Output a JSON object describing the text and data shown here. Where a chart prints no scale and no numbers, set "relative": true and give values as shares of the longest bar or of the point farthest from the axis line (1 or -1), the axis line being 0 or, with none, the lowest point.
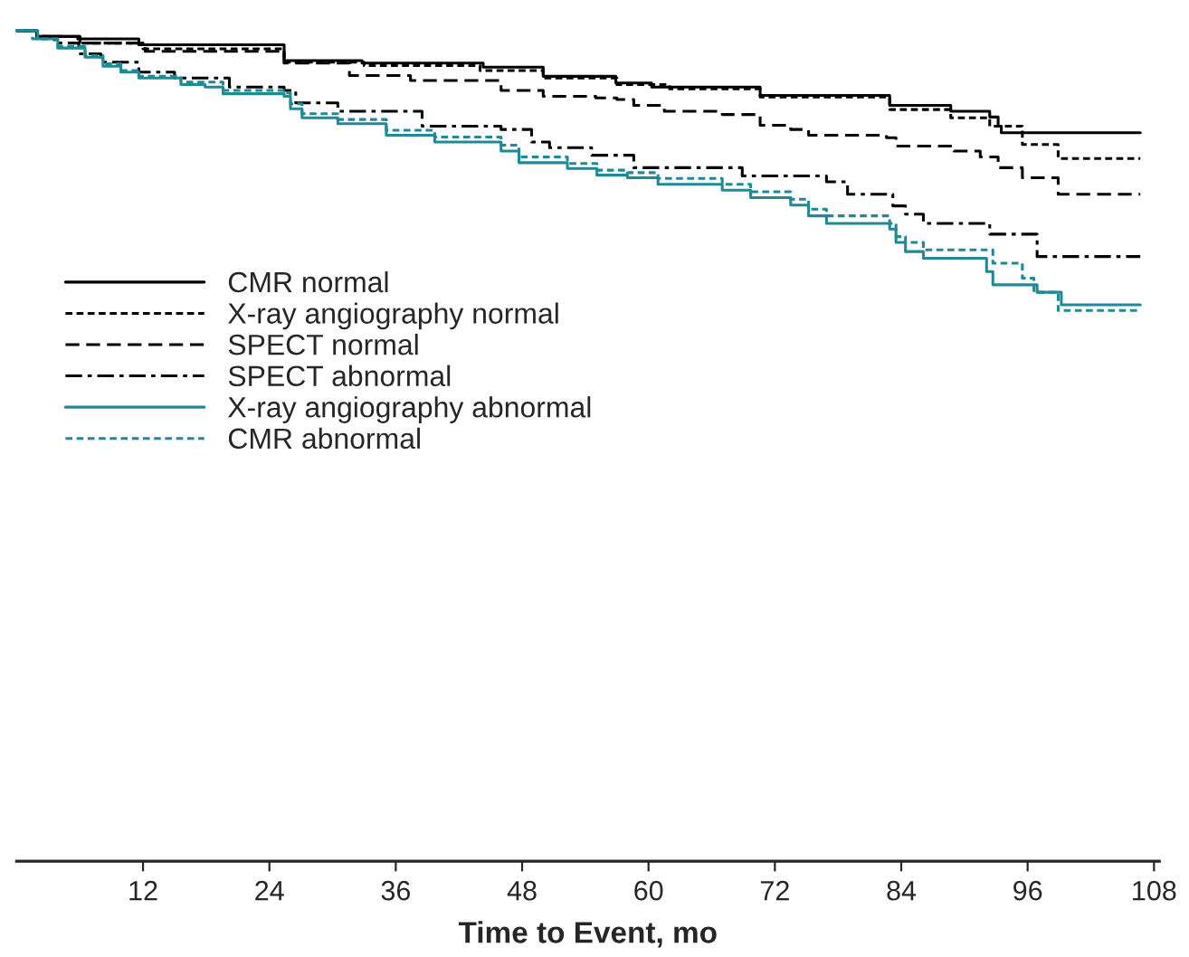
{
  "chart_data": {
    "type": "step",
    "relative": true,
    "xlabel": "Time to Event, mo",
    "xlim": [
      0,
      108.5
    ],
    "xticks": [
      12,
      24,
      36,
      48,
      60,
      72,
      84,
      96,
      108
    ],
    "legend": "left",
    "grid": false,
    "tick_labels": "x",
    "series": [
      {
        "name": "CMR normal",
        "color": "#000000",
        "line_style": "solid",
        "x": [
          0,
          1.9,
          5.8,
          11.6,
          25.4,
          32.8,
          44.3,
          50,
          56.9,
          60.3,
          70.6,
          82.9,
          88.7,
          92.4,
          93.2,
          93.5,
          106.7
        ],
        "values": [
          1,
          0.993,
          0.99,
          0.983,
          0.964,
          0.961,
          0.956,
          0.945,
          0.937,
          0.932,
          0.922,
          0.91,
          0.903,
          0.896,
          0.885,
          0.877,
          0.877
        ]
      },
      {
        "name": "X-ray angiography normal",
        "color": "#000000",
        "line_style": "dotted",
        "x": [
          0,
          1.9,
          6,
          12,
          25.4,
          33,
          44,
          50,
          57,
          62,
          70.6,
          82.9,
          88.7,
          92.4,
          95.5,
          98.9,
          106.7
        ],
        "values": [
          1,
          0.993,
          0.985,
          0.978,
          0.962,
          0.958,
          0.952,
          0.943,
          0.935,
          0.93,
          0.92,
          0.905,
          0.895,
          0.885,
          0.863,
          0.846,
          0.846
        ]
      },
      {
        "name": "SPECT normal",
        "color": "#000000",
        "line_style": "dashed",
        "x": [
          0,
          1.9,
          6,
          12.2,
          25.4,
          31.6,
          37.4,
          46,
          50,
          55,
          57,
          58.6,
          61.5,
          67,
          70.6,
          73.5,
          75.2,
          82.6,
          83.5,
          89,
          91.5,
          93.2,
          95.5,
          98.9,
          106.7
        ],
        "values": [
          1,
          0.993,
          0.985,
          0.975,
          0.961,
          0.946,
          0.94,
          0.928,
          0.921,
          0.919,
          0.917,
          0.91,
          0.903,
          0.899,
          0.886,
          0.881,
          0.874,
          0.871,
          0.861,
          0.855,
          0.848,
          0.835,
          0.823,
          0.803,
          0.803
        ]
      },
      {
        "name": "SPECT abnormal",
        "color": "#000000",
        "line_style": "dashdot",
        "x": [
          0,
          1.9,
          3.6,
          5.9,
          8,
          11.6,
          15,
          20.2,
          25.4,
          26.5,
          30.5,
          38.5,
          46,
          48.9,
          50.6,
          54.6,
          58.6,
          68.9,
          76.9,
          78.9,
          83.2,
          84.4,
          86.1,
          92.4,
          96.9,
          106.7
        ],
        "values": [
          1,
          0.993,
          0.985,
          0.972,
          0.962,
          0.95,
          0.943,
          0.932,
          0.928,
          0.913,
          0.903,
          0.885,
          0.881,
          0.866,
          0.859,
          0.85,
          0.835,
          0.825,
          0.818,
          0.803,
          0.789,
          0.779,
          0.768,
          0.755,
          0.728,
          0.728
        ]
      },
      {
        "name": "X-ray angiography abnormal",
        "color": "#1f8a96",
        "line_style": "solid",
        "x": [
          0,
          2,
          3.9,
          6.5,
          8.2,
          9.9,
          11.6,
          15.6,
          17.9,
          19.6,
          25.4,
          26,
          27.1,
          30.5,
          35.1,
          39.7,
          46,
          47.7,
          52.3,
          55.1,
          58,
          60.9,
          67,
          69.7,
          73.5,
          75.2,
          76.9,
          82.9,
          83.5,
          84.4,
          86.1,
          92.1,
          92.7,
          96.9,
          99.2,
          106.7
        ],
        "values": [
          1,
          0.99,
          0.979,
          0.968,
          0.957,
          0.95,
          0.943,
          0.935,
          0.932,
          0.924,
          0.921,
          0.906,
          0.895,
          0.888,
          0.874,
          0.866,
          0.855,
          0.841,
          0.834,
          0.826,
          0.823,
          0.815,
          0.808,
          0.799,
          0.79,
          0.777,
          0.768,
          0.761,
          0.745,
          0.734,
          0.726,
          0.71,
          0.694,
          0.685,
          0.67,
          0.67
        ]
      },
      {
        "name": "CMR abnormal",
        "color": "#1f8a96",
        "line_style": "dotted",
        "x": [
          0,
          1.5,
          3.9,
          6.5,
          8.2,
          9.9,
          11.6,
          15.6,
          19.6,
          25.4,
          26,
          27.1,
          30.5,
          35.1,
          39.7,
          46,
          47.7,
          52.3,
          55.1,
          58,
          60.9,
          67,
          69.7,
          73.5,
          75.2,
          76.9,
          82.9,
          83.5,
          84.4,
          86.1,
          92.7,
          95.5,
          96.6,
          98.9,
          106.7
        ],
        "values": [
          1,
          0.99,
          0.981,
          0.97,
          0.96,
          0.952,
          0.945,
          0.938,
          0.928,
          0.925,
          0.912,
          0.9,
          0.893,
          0.88,
          0.872,
          0.862,
          0.848,
          0.84,
          0.832,
          0.829,
          0.822,
          0.815,
          0.806,
          0.797,
          0.785,
          0.777,
          0.768,
          0.752,
          0.745,
          0.736,
          0.72,
          0.702,
          0.685,
          0.663,
          0.663
        ]
      }
    ]
  }
}
